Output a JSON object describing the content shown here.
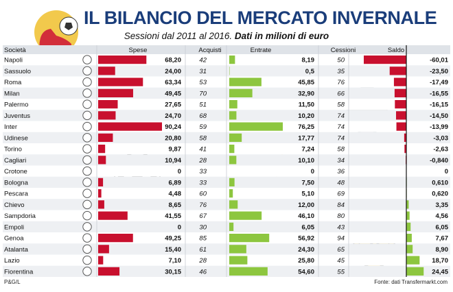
{
  "header": {
    "title": "IL BILANCIO DEL MERCATO INVERNALE",
    "subtitle_italic": "Sessioni dal 2011 al 2016. ",
    "subtitle_bold": "Dati in milioni di euro"
  },
  "footer": {
    "credit": "P&G/L",
    "source": "Fonte: dati Transfermarkt.com"
  },
  "colors": {
    "spese": "#c8102e",
    "entrate": "#8dc63f",
    "saldo_negative": "#c8102e",
    "saldo_positive": "#8dc63f",
    "row_light": "#ffffff",
    "row_dark": "#eef0f3",
    "header_bg": "#dfe3e8",
    "title": "#1a3d7a"
  },
  "chart_data": {
    "type": "table",
    "columns": [
      "Società",
      "Spese",
      "Acquisti",
      "Entrate",
      "Cessioni",
      "Saldo"
    ],
    "rows": [
      {
        "team": "Napoli",
        "spese": 68.2,
        "spese_label": "68,20",
        "acquisti": "42",
        "entrate": 8.19,
        "entrate_label": "8,19",
        "cessioni": "50",
        "saldo": -60.01,
        "saldo_label": "-60,01",
        "crest": "napoli-crest-icon"
      },
      {
        "team": "Sassuolo",
        "spese": 24.0,
        "spese_label": "24,00",
        "acquisti": "31",
        "entrate": 0.5,
        "entrate_label": "0,5",
        "cessioni": "35",
        "saldo": -23.5,
        "saldo_label": "-23,50",
        "crest": "sassuolo-crest-icon"
      },
      {
        "team": "Roma",
        "spese": 63.34,
        "spese_label": "63,34",
        "acquisti": "53",
        "entrate": 45.85,
        "entrate_label": "45,85",
        "cessioni": "76",
        "saldo": -17.49,
        "saldo_label": "-17,49",
        "crest": "roma-crest-icon"
      },
      {
        "team": "Milan",
        "spese": 49.45,
        "spese_label": "49,45",
        "acquisti": "70",
        "entrate": 32.9,
        "entrate_label": "32,90",
        "cessioni": "66",
        "saldo": -16.55,
        "saldo_label": "-16,55",
        "crest": "milan-crest-icon"
      },
      {
        "team": "Palermo",
        "spese": 27.65,
        "spese_label": "27,65",
        "acquisti": "51",
        "entrate": 11.5,
        "entrate_label": "11,50",
        "cessioni": "58",
        "saldo": -16.15,
        "saldo_label": "-16,15",
        "crest": "palermo-crest-icon"
      },
      {
        "team": "Juventus",
        "spese": 24.7,
        "spese_label": "24,70",
        "acquisti": "68",
        "entrate": 10.2,
        "entrate_label": "10,20",
        "cessioni": "74",
        "saldo": -14.5,
        "saldo_label": "-14,50",
        "crest": "juventus-crest-icon"
      },
      {
        "team": "Inter",
        "spese": 90.24,
        "spese_label": "90,24",
        "acquisti": "59",
        "entrate": 76.25,
        "entrate_label": "76,25",
        "cessioni": "74",
        "saldo": -13.99,
        "saldo_label": "-13,99",
        "crest": "inter-crest-icon"
      },
      {
        "team": "Udinese",
        "spese": 20.8,
        "spese_label": "20,80",
        "acquisti": "58",
        "entrate": 17.77,
        "entrate_label": "17,77",
        "cessioni": "74",
        "saldo": -3.03,
        "saldo_label": "-3,03",
        "crest": "udinese-crest-icon"
      },
      {
        "team": "Torino",
        "spese": 9.87,
        "spese_label": "9,87",
        "acquisti": "41",
        "entrate": 7.24,
        "entrate_label": "7,24",
        "cessioni": "58",
        "saldo": -2.63,
        "saldo_label": "-2,63",
        "crest": "torino-crest-icon"
      },
      {
        "team": "Cagliari",
        "spese": 10.94,
        "spese_label": "10,94",
        "acquisti": "28",
        "entrate": 10.1,
        "entrate_label": "10,10",
        "cessioni": "34",
        "saldo": -0.84,
        "saldo_label": "-0,840",
        "crest": "cagliari-crest-icon"
      },
      {
        "team": "Crotone",
        "spese": 0,
        "spese_label": "0",
        "acquisti": "33",
        "entrate": 0,
        "entrate_label": "0",
        "cessioni": "36",
        "saldo": 0,
        "saldo_label": "0",
        "crest": "crotone-crest-icon"
      },
      {
        "team": "Bologna",
        "spese": 6.89,
        "spese_label": "6,89",
        "acquisti": "33",
        "entrate": 7.5,
        "entrate_label": "7,50",
        "cessioni": "48",
        "saldo": 0.61,
        "saldo_label": "0,610",
        "crest": "bologna-crest-icon"
      },
      {
        "team": "Pescara",
        "spese": 4.48,
        "spese_label": "4,48",
        "acquisti": "60",
        "entrate": 5.1,
        "entrate_label": "5,10",
        "cessioni": "69",
        "saldo": 0.62,
        "saldo_label": "0,620",
        "crest": "pescara-crest-icon"
      },
      {
        "team": "Chievo",
        "spese": 8.65,
        "spese_label": "8,65",
        "acquisti": "76",
        "entrate": 12.0,
        "entrate_label": "12,00",
        "cessioni": "84",
        "saldo": 3.35,
        "saldo_label": "3,35",
        "crest": "chievo-crest-icon"
      },
      {
        "team": "Sampdoria",
        "spese": 41.55,
        "spese_label": "41,55",
        "acquisti": "67",
        "entrate": 46.1,
        "entrate_label": "46,10",
        "cessioni": "80",
        "saldo": 4.56,
        "saldo_label": "4,56",
        "crest": "sampdoria-crest-icon"
      },
      {
        "team": "Empoli",
        "spese": 0,
        "spese_label": "0",
        "acquisti": "30",
        "entrate": 6.05,
        "entrate_label": "6,05",
        "cessioni": "43",
        "saldo": 6.05,
        "saldo_label": "6,05",
        "crest": "empoli-crest-icon"
      },
      {
        "team": "Genoa",
        "spese": 49.25,
        "spese_label": "49,25",
        "acquisti": "85",
        "entrate": 56.92,
        "entrate_label": "56,92",
        "cessioni": "94",
        "saldo": 7.67,
        "saldo_label": "7,67",
        "crest": "genoa-crest-icon"
      },
      {
        "team": "Atalanta",
        "spese": 15.4,
        "spese_label": "15,40",
        "acquisti": "61",
        "entrate": 24.3,
        "entrate_label": "24,30",
        "cessioni": "65",
        "saldo": 8.9,
        "saldo_label": "8,90",
        "crest": "atalanta-crest-icon"
      },
      {
        "team": "Lazio",
        "spese": 7.1,
        "spese_label": "7,10",
        "acquisti": "28",
        "entrate": 25.8,
        "entrate_label": "25,80",
        "cessioni": "45",
        "saldo": 18.7,
        "saldo_label": "18,70",
        "crest": "lazio-crest-icon"
      },
      {
        "team": "Fiorentina",
        "spese": 30.15,
        "spese_label": "30,15",
        "acquisti": "46",
        "entrate": 54.6,
        "entrate_label": "54,60",
        "cessioni": "55",
        "saldo": 24.45,
        "saldo_label": "24,45",
        "crest": "fiorentina-crest-icon"
      }
    ],
    "spese_max": 90.24,
    "entrate_max": 76.25,
    "saldo_range": [
      -60.01,
      24.45
    ],
    "grid": false,
    "legend": "none"
  }
}
